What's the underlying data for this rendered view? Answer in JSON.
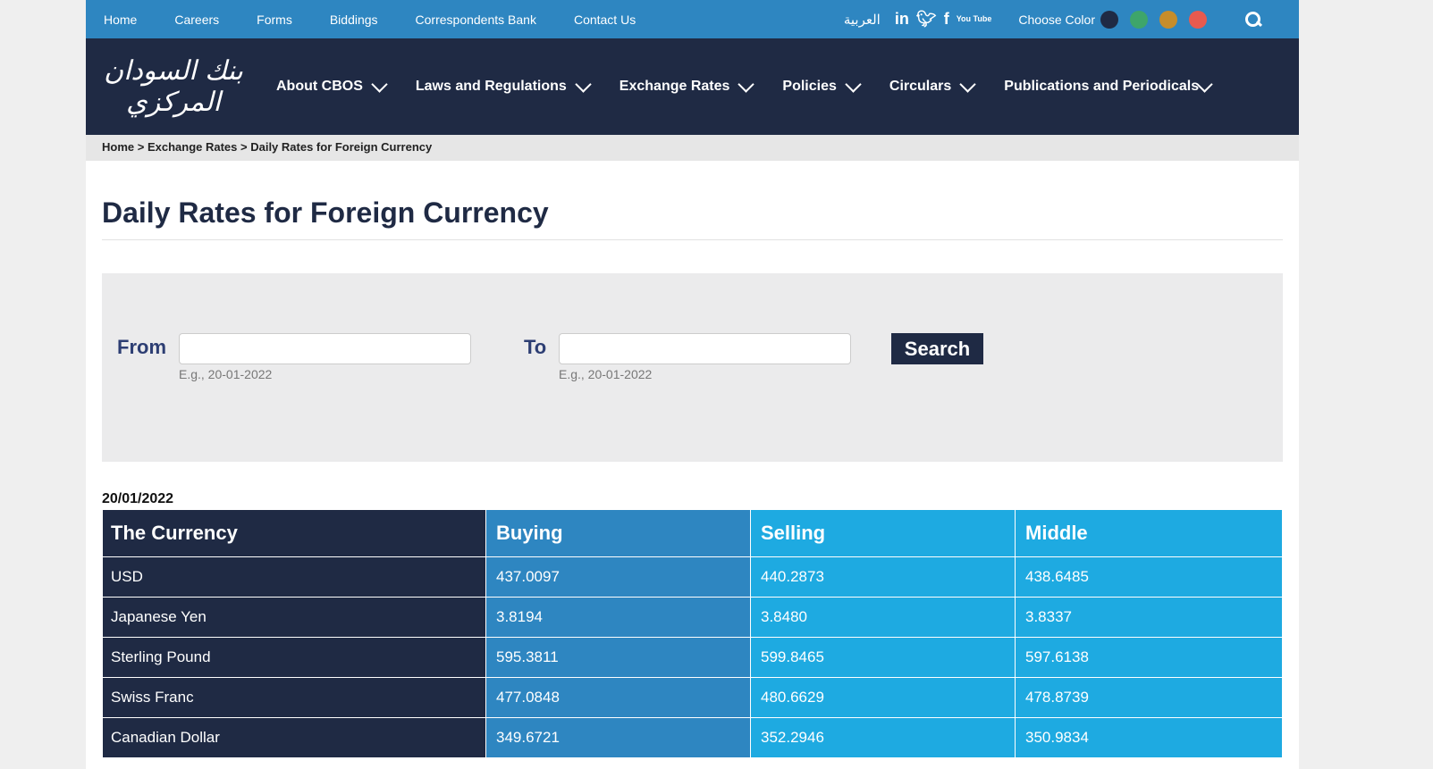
{
  "topbar": {
    "links": [
      "Home",
      "Careers",
      "Forms",
      "Biddings",
      "Correspondents Bank",
      "Contact Us"
    ],
    "arabic": "العربية",
    "social": [
      "linkedin-icon",
      "twitter-icon",
      "facebook-icon",
      "youtube-icon"
    ],
    "youtube_text": "You Tube",
    "choose_color": "Choose Color",
    "colors": [
      "#1f2a44",
      "#3ea56b",
      "#c68d2b",
      "#e85a4f"
    ]
  },
  "logo_text": "بنك السودان المركزي",
  "nav": [
    "About CBOS",
    "Laws and Regulations",
    "Exchange Rates",
    "Policies",
    "Circulars",
    "Publications and Periodicals"
  ],
  "breadcrumb": {
    "home": "Home",
    "sep": " > ",
    "section": "Exchange Rates",
    "current": "Daily Rates for Foreign Currency"
  },
  "title": "Daily Rates for Foreign Currency",
  "form": {
    "from_label": "From",
    "to_label": "To",
    "from_value": "",
    "to_value": "",
    "hint": "E.g., 20-01-2022",
    "search": "Search"
  },
  "date": "20/01/2022",
  "table": {
    "headers": [
      "The Currency",
      "Buying",
      "Selling",
      "Middle"
    ],
    "rows": [
      [
        "USD",
        "437.0097",
        "440.2873",
        "438.6485"
      ],
      [
        "Japanese Yen",
        "3.8194",
        "3.8480",
        "3.8337"
      ],
      [
        "Sterling Pound",
        "595.3811",
        "599.8465",
        "597.6138"
      ],
      [
        "Swiss Franc",
        "477.0848",
        "480.6629",
        "478.8739"
      ],
      [
        "Canadian Dollar",
        "349.6721",
        "352.2946",
        "350.9834"
      ]
    ]
  }
}
